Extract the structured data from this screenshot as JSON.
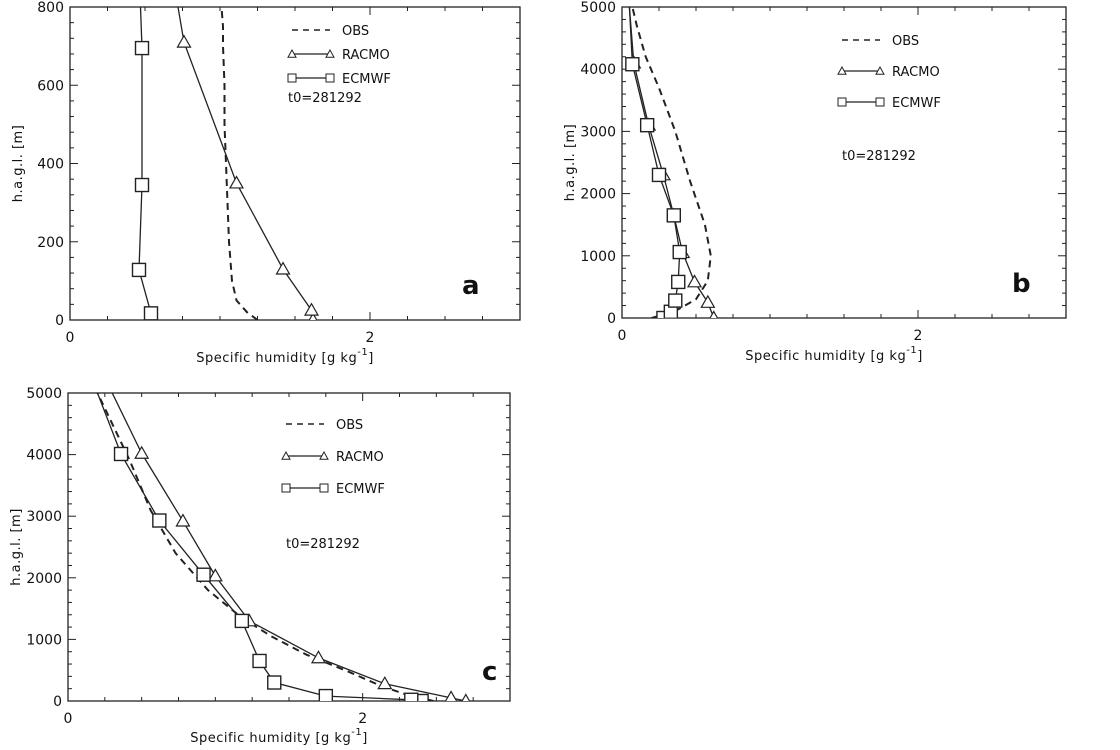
{
  "chart_data": [
    {
      "type": "line",
      "panel": "a",
      "annotation": "t0=281292",
      "xlabel": "Specific humidity [g kg",
      "xlabel_sup": "-1",
      "xlabel_end": "]",
      "ylabel": "h.a.g.l. [m]",
      "xlim": [
        0,
        3.0
      ],
      "ylim": [
        0,
        800
      ],
      "xticks": [
        0,
        2
      ],
      "yticks": [
        0,
        200,
        400,
        600,
        800
      ],
      "series": [
        {
          "name": "OBS",
          "style": "dashed",
          "marker": "none",
          "x": [
            1.25,
            1.18,
            1.11,
            1.08,
            1.07,
            1.06,
            1.05,
            1.04,
            1.03,
            1.03,
            1.02,
            1.02,
            1.01
          ],
          "y": [
            0,
            20,
            50,
            100,
            150,
            200,
            300,
            400,
            500,
            600,
            700,
            750,
            800
          ]
        },
        {
          "name": "RACMO",
          "style": "solid",
          "marker": "triangle",
          "x": [
            1.62,
            1.61,
            1.42,
            1.11,
            0.76,
            0.72
          ],
          "y": [
            0,
            25,
            130,
            350,
            710,
            800
          ],
          "marker_idx": [
            0,
            1,
            2,
            3,
            4
          ]
        },
        {
          "name": "ECMWF",
          "style": "solid",
          "marker": "square",
          "x": [
            0.54,
            0.46,
            0.48,
            0.48,
            0.47
          ],
          "y": [
            17,
            128,
            345,
            695,
            800
          ],
          "marker_idx": [
            0,
            1,
            2,
            3
          ]
        }
      ]
    },
    {
      "type": "line",
      "panel": "b",
      "annotation": "t0=281292",
      "xlabel": "Specific humidity [g kg",
      "xlabel_sup": "-1",
      "xlabel_end": "]",
      "ylabel": "h.a.g.l. [m]",
      "xlim": [
        0,
        3.0
      ],
      "ylim": [
        0,
        5000
      ],
      "xticks": [
        0,
        2
      ],
      "yticks": [
        0,
        1000,
        2000,
        3000,
        4000,
        5000
      ],
      "series": [
        {
          "name": "OBS",
          "style": "dashed",
          "marker": "none",
          "x": [
            0.2,
            0.35,
            0.5,
            0.58,
            0.6,
            0.56,
            0.46,
            0.36,
            0.25,
            0.16,
            0.1,
            0.07
          ],
          "y": [
            0,
            100,
            300,
            600,
            1000,
            1500,
            2200,
            3000,
            3700,
            4200,
            4700,
            5000
          ]
        },
        {
          "name": "RACMO",
          "style": "solid",
          "marker": "triangle",
          "x": [
            0.62,
            0.58,
            0.49,
            0.41,
            0.35,
            0.28,
            0.18,
            0.08,
            0.05
          ],
          "y": [
            0,
            250,
            580,
            1050,
            1650,
            2300,
            3100,
            4100,
            5000
          ],
          "marker_idx": [
            0,
            1,
            2,
            3,
            4,
            5,
            6,
            7
          ]
        },
        {
          "name": "ECMWF",
          "style": "solid",
          "marker": "square",
          "x": [
            0.28,
            0.33,
            0.36,
            0.38,
            0.39,
            0.35,
            0.25,
            0.17,
            0.07,
            0.05
          ],
          "y": [
            0,
            100,
            280,
            580,
            1060,
            1650,
            2300,
            3100,
            4080,
            5000
          ],
          "marker_idx": [
            0,
            1,
            2,
            3,
            4,
            5,
            6,
            7,
            8
          ]
        }
      ]
    },
    {
      "type": "line",
      "panel": "c",
      "annotation": "t0=281292",
      "xlabel": "Specific humidity [g kg",
      "xlabel_sup": "-1",
      "xlabel_end": "]",
      "ylabel": "h.a.g.l. [m]",
      "xlim": [
        0,
        3.0
      ],
      "ylim": [
        0,
        5000
      ],
      "xticks": [
        0,
        2
      ],
      "yticks": [
        0,
        1000,
        2000,
        3000,
        4000,
        5000
      ],
      "series": [
        {
          "name": "OBS",
          "style": "dashed",
          "marker": "none",
          "x": [
            2.48,
            2.3,
            2.12,
            1.9,
            1.62,
            1.38,
            1.18,
            0.95,
            0.73,
            0.56,
            0.42,
            0.28,
            0.2
          ],
          "y": [
            0,
            100,
            250,
            480,
            750,
            1050,
            1350,
            1800,
            2400,
            3100,
            3900,
            4600,
            5000
          ]
        },
        {
          "name": "RACMO",
          "style": "solid",
          "marker": "triangle",
          "x": [
            2.7,
            2.6,
            2.15,
            1.7,
            1.23,
            1.0,
            0.78,
            0.5,
            0.3
          ],
          "y": [
            0,
            50,
            280,
            700,
            1300,
            2030,
            2920,
            4020,
            5000
          ],
          "marker_idx": [
            0,
            1,
            2,
            3,
            4,
            5,
            6,
            7
          ]
        },
        {
          "name": "ECMWF",
          "style": "solid",
          "marker": "square",
          "x": [
            2.4,
            2.33,
            1.75,
            1.4,
            1.3,
            1.18,
            0.92,
            0.62,
            0.36,
            0.2
          ],
          "y": [
            0,
            20,
            80,
            300,
            650,
            1300,
            2050,
            2930,
            4010,
            5000
          ],
          "marker_idx": [
            0,
            1,
            2,
            3,
            4,
            5,
            6,
            7,
            8
          ]
        }
      ]
    }
  ]
}
